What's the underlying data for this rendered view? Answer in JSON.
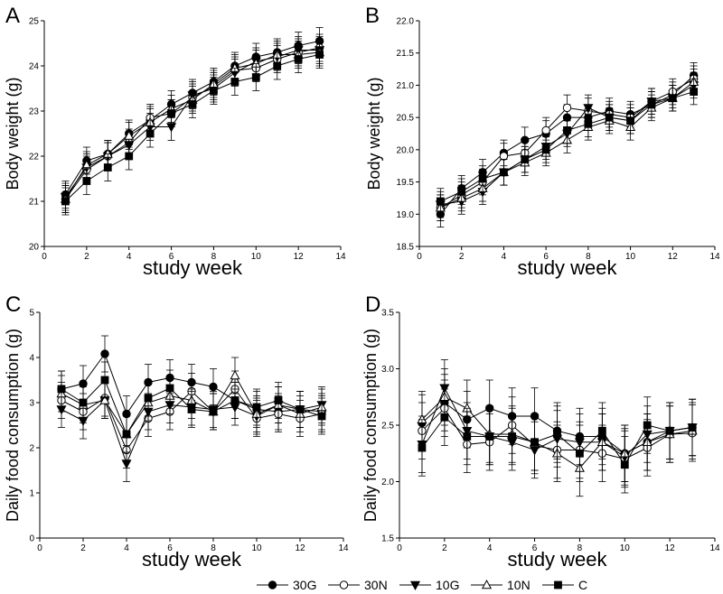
{
  "chart_data": [
    {
      "panel_label": "A",
      "type": "line",
      "xlabel": "study week",
      "ylabel": "Body weight (g)",
      "xlim": [
        0,
        14
      ],
      "ylim": [
        20,
        25
      ],
      "xticks": [
        "0",
        "2",
        "4",
        "6",
        "8",
        "10",
        "12",
        "14"
      ],
      "yticks": [
        "20",
        "21",
        "22",
        "23",
        "24",
        "25"
      ],
      "x": [
        1,
        2,
        3,
        4,
        5,
        6,
        7,
        8,
        9,
        10,
        11,
        12,
        13
      ],
      "error": 0.3,
      "series": [
        {
          "name": "30G",
          "values": [
            21.15,
            21.9,
            22.05,
            22.5,
            22.8,
            23.15,
            23.4,
            23.65,
            24.0,
            24.2,
            24.3,
            24.45,
            24.55
          ]
        },
        {
          "name": "30N",
          "values": [
            21.05,
            21.7,
            22.0,
            22.3,
            22.85,
            22.95,
            23.3,
            23.55,
            23.9,
            23.95,
            24.15,
            24.3,
            24.4
          ]
        },
        {
          "name": "10G",
          "values": [
            21.1,
            21.75,
            22.0,
            22.25,
            22.65,
            22.65,
            23.35,
            23.5,
            23.85,
            24.1,
            24.2,
            24.35,
            24.35
          ]
        },
        {
          "name": "10N",
          "values": [
            21.05,
            21.8,
            22.05,
            22.45,
            22.75,
            23.05,
            23.25,
            23.6,
            23.95,
            24.05,
            24.25,
            24.25,
            24.3
          ]
        },
        {
          "name": "C",
          "values": [
            21.0,
            21.45,
            21.75,
            22.0,
            22.5,
            22.95,
            23.15,
            23.45,
            23.65,
            23.75,
            24.0,
            24.15,
            24.25
          ]
        }
      ]
    },
    {
      "panel_label": "B",
      "type": "line",
      "xlabel": "study week",
      "ylabel": "Body weight (g)",
      "xlim": [
        0,
        14
      ],
      "ylim": [
        18.5,
        22.0
      ],
      "xticks": [
        "0",
        "2",
        "4",
        "6",
        "8",
        "10",
        "12",
        "14"
      ],
      "yticks": [
        "18.5",
        "19.0",
        "19.5",
        "20.0",
        "20.5",
        "21.0",
        "21.5",
        "22.0"
      ],
      "x": [
        1,
        2,
        3,
        4,
        5,
        6,
        7,
        8,
        9,
        10,
        11,
        12,
        13
      ],
      "error": 0.2,
      "series": [
        {
          "name": "30G",
          "values": [
            19.0,
            19.4,
            19.65,
            19.95,
            20.15,
            20.25,
            20.5,
            20.5,
            20.6,
            20.55,
            20.7,
            20.85,
            21.15
          ]
        },
        {
          "name": "30N",
          "values": [
            19.1,
            19.3,
            19.5,
            19.9,
            19.95,
            20.3,
            20.65,
            20.6,
            20.55,
            20.5,
            20.75,
            20.9,
            21.1
          ]
        },
        {
          "name": "10G",
          "values": [
            19.15,
            19.2,
            19.35,
            19.65,
            19.85,
            20.05,
            20.25,
            20.65,
            20.5,
            20.45,
            20.75,
            20.8,
            21.0
          ]
        },
        {
          "name": "10N",
          "values": [
            19.1,
            19.25,
            19.4,
            19.65,
            19.8,
            19.95,
            20.15,
            20.35,
            20.45,
            20.35,
            20.65,
            20.8,
            21.05
          ]
        },
        {
          "name": "C",
          "values": [
            19.2,
            19.35,
            19.55,
            19.65,
            19.85,
            20.0,
            20.3,
            20.4,
            20.5,
            20.45,
            20.7,
            20.8,
            20.9
          ]
        }
      ]
    },
    {
      "panel_label": "C",
      "type": "line",
      "xlabel": "study week",
      "ylabel": "Daily food consumption (g)",
      "xlim": [
        0,
        14
      ],
      "ylim": [
        0,
        5
      ],
      "xticks": [
        "0",
        "2",
        "4",
        "6",
        "8",
        "10",
        "12",
        "14"
      ],
      "yticks": [
        "0",
        "1",
        "2",
        "3",
        "4",
        "5"
      ],
      "x": [
        1,
        2,
        3,
        4,
        5,
        6,
        7,
        8,
        9,
        10,
        11,
        12,
        13
      ],
      "error": 0.4,
      "series": [
        {
          "name": "30G",
          "values": [
            3.3,
            3.42,
            4.08,
            2.75,
            3.45,
            3.55,
            3.45,
            3.35,
            3.05,
            2.85,
            2.8,
            2.85,
            2.8
          ]
        },
        {
          "name": "30N",
          "values": [
            3.05,
            2.8,
            3.1,
            1.95,
            2.65,
            2.8,
            3.25,
            2.8,
            3.3,
            2.65,
            2.75,
            2.65,
            2.75
          ]
        },
        {
          "name": "10G",
          "values": [
            2.85,
            2.6,
            3.05,
            1.65,
            2.8,
            2.95,
            2.9,
            2.85,
            2.9,
            2.7,
            2.95,
            2.85,
            2.95
          ]
        },
        {
          "name": "10N",
          "values": [
            3.2,
            2.95,
            3.05,
            2.3,
            3.0,
            3.15,
            3.05,
            2.8,
            3.6,
            2.75,
            2.95,
            2.75,
            2.9
          ]
        },
        {
          "name": "C",
          "values": [
            3.3,
            3.0,
            3.5,
            2.3,
            3.1,
            3.32,
            2.85,
            2.8,
            3.05,
            2.9,
            3.05,
            2.85,
            2.7
          ]
        }
      ]
    },
    {
      "panel_label": "D",
      "type": "line",
      "xlabel": "study week",
      "ylabel": "Daily food consumption (g)",
      "xlim": [
        0,
        14
      ],
      "ylim": [
        1.5,
        3.5
      ],
      "xticks": [
        "0",
        "2",
        "4",
        "6",
        "8",
        "10",
        "12",
        "14"
      ],
      "yticks": [
        "1.5",
        "2.0",
        "2.5",
        "3.0",
        "3.5"
      ],
      "x": [
        1,
        2,
        3,
        4,
        5,
        6,
        7,
        8,
        9,
        10,
        11,
        12,
        13
      ],
      "error": 0.25,
      "series": [
        {
          "name": "30G",
          "values": [
            2.52,
            2.7,
            2.55,
            2.65,
            2.58,
            2.58,
            2.45,
            2.4,
            2.4,
            2.25,
            2.35,
            2.45,
            2.48
          ]
        },
        {
          "name": "30N",
          "values": [
            2.45,
            2.65,
            2.33,
            2.35,
            2.5,
            2.32,
            2.28,
            2.28,
            2.25,
            2.2,
            2.3,
            2.42,
            2.43
          ]
        },
        {
          "name": "10G",
          "values": [
            2.33,
            2.83,
            2.45,
            2.4,
            2.35,
            2.28,
            2.38,
            2.35,
            2.35,
            2.22,
            2.42,
            2.45,
            2.48
          ]
        },
        {
          "name": "10N",
          "values": [
            2.55,
            2.75,
            2.65,
            2.42,
            2.42,
            2.35,
            2.25,
            2.12,
            2.35,
            2.25,
            2.35,
            2.42,
            2.45
          ]
        },
        {
          "name": "C",
          "values": [
            2.3,
            2.57,
            2.4,
            2.4,
            2.4,
            2.35,
            2.42,
            2.25,
            2.45,
            2.15,
            2.5,
            2.45,
            2.48
          ]
        }
      ]
    }
  ],
  "legend": [
    {
      "name": "30G",
      "marker": "filled-circle"
    },
    {
      "name": "30N",
      "marker": "open-circle"
    },
    {
      "name": "10G",
      "marker": "filled-triangle-down"
    },
    {
      "name": "10N",
      "marker": "open-triangle-up"
    },
    {
      "name": "C",
      "marker": "filled-square"
    }
  ]
}
